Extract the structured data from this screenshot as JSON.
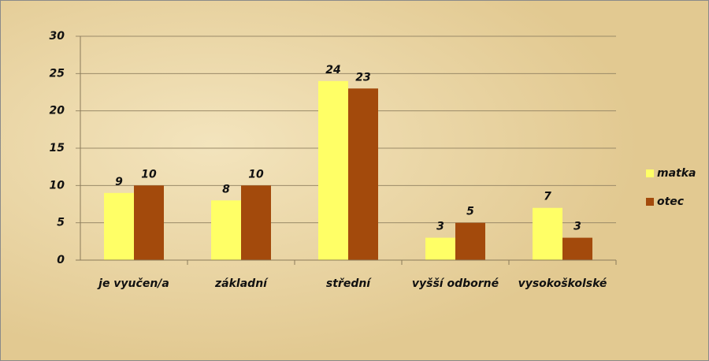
{
  "chart_data": {
    "type": "bar",
    "categories": [
      "je vyučen/a",
      "základní",
      "střední",
      "vyšší odborné",
      "vysokoškolské"
    ],
    "series": [
      {
        "name": "matka",
        "color": "#ffff66",
        "values": [
          9,
          8,
          24,
          3,
          7
        ]
      },
      {
        "name": "otec",
        "color": "#a34a0c",
        "values": [
          10,
          10,
          23,
          5,
          3
        ]
      }
    ],
    "ylim": [
      0,
      30
    ],
    "yticks": [
      0,
      5,
      10,
      15,
      20,
      25,
      30
    ],
    "grid": true,
    "legend": "right"
  }
}
